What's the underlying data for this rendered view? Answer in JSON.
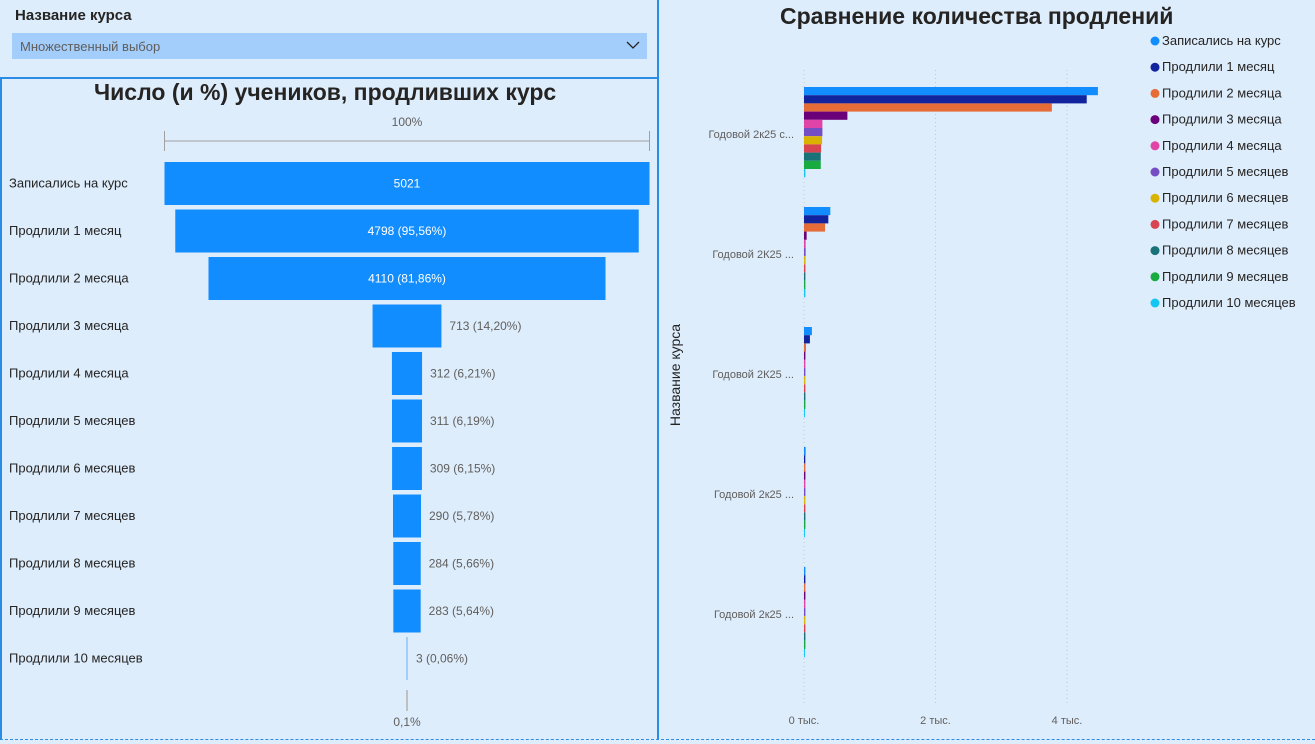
{
  "slicer": {
    "title": "Название курса",
    "placeholder": "Множественный выбор"
  },
  "chart_data": [
    {
      "type": "funnel",
      "title": "Число (и %) учеников, продливших курс",
      "top_label": "100%",
      "bottom_label": "0,1%",
      "categories": [
        "Записались на курс",
        "Продлили 1 месяц",
        "Продлили 2 месяца",
        "Продлили 3 месяца",
        "Продлили 4 месяца",
        "Продлили 5 месяцев",
        "Продлили 6 месяцев",
        "Продлили 7 месяцев",
        "Продлили 8 месяцев",
        "Продлили 9 месяцев",
        "Продлили 10 месяцев"
      ],
      "values": [
        5021,
        4798,
        4110,
        713,
        312,
        311,
        309,
        290,
        284,
        283,
        3
      ],
      "labels": [
        "5021",
        "4798 (95,56%)",
        "4110 (81,86%)",
        "713 (14,20%)",
        "312 (6,21%)",
        "311 (6,19%)",
        "309 (6,15%)",
        "290 (5,78%)",
        "284 (5,66%)",
        "283 (5,64%)",
        "3 (0,06%)"
      ],
      "color": "#118dff"
    },
    {
      "type": "bar",
      "orientation": "horizontal",
      "title": "Сравнение количества продлений",
      "ylabel": "Название курса",
      "categories": [
        "Годовой 2к25 с...",
        "Годовой 2К25 ...",
        "Годовой 2К25 ...",
        "Годовой 2к25 ...",
        "Годовой 2к25 ..."
      ],
      "xlim": [
        0,
        4600
      ],
      "x_ticks": [
        0,
        2000,
        4000
      ],
      "x_tick_labels": [
        "0 тыс.",
        "2 тыс.",
        "4 тыс."
      ],
      "legend_position": "top-right",
      "series": [
        {
          "name": "Записались на курс",
          "color": "#118dff",
          "values": [
            4470,
            400,
            120,
            25,
            6
          ]
        },
        {
          "name": "Продлили 1 месяц",
          "color": "#12239e",
          "values": [
            4300,
            370,
            90,
            20,
            5
          ]
        },
        {
          "name": "Продлили 2 месяца",
          "color": "#e66c37",
          "values": [
            3770,
            320,
            30,
            10,
            3
          ]
        },
        {
          "name": "Продлили 3 месяца",
          "color": "#6b007b",
          "values": [
            660,
            40,
            8,
            3,
            1
          ]
        },
        {
          "name": "Продлили 4 месяца",
          "color": "#e044a7",
          "values": [
            280,
            25,
            6,
            2,
            1
          ]
        },
        {
          "name": "Продлили 5 месяцев",
          "color": "#744ec2",
          "values": [
            280,
            25,
            5,
            2,
            1
          ]
        },
        {
          "name": "Продлили 6 месяцев",
          "color": "#d9b300",
          "values": [
            275,
            24,
            5,
            2,
            1
          ]
        },
        {
          "name": "Продлили 7 месяцев",
          "color": "#d64550",
          "values": [
            260,
            22,
            5,
            2,
            1
          ]
        },
        {
          "name": "Продлили 8 месяцев",
          "color": "#197278",
          "values": [
            255,
            21,
            5,
            2,
            1
          ]
        },
        {
          "name": "Продлили 9 месяцев",
          "color": "#1aab40",
          "values": [
            255,
            21,
            5,
            2,
            1
          ]
        },
        {
          "name": "Продлили 10 месяцев",
          "color": "#15c6f4",
          "values": [
            2,
            1,
            0,
            0,
            0
          ]
        }
      ]
    }
  ]
}
